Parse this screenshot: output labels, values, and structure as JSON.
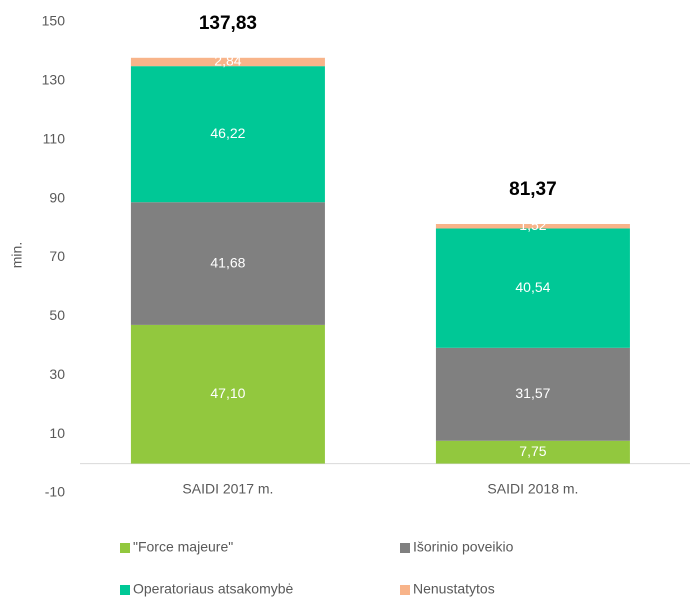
{
  "chart_data": {
    "type": "stacked_bar",
    "y_label": "min.",
    "categories": [
      "SAIDI 2017 m.",
      "SAIDI 2018 m."
    ],
    "series": [
      {
        "name": "\"Force majeure\"",
        "color": "#92c83e",
        "values": [
          47.1,
          7.75
        ],
        "value_labels": [
          "47,10",
          "7,75"
        ]
      },
      {
        "name": "Išorinio poveikio",
        "color": "#808080",
        "values": [
          41.68,
          31.57
        ],
        "value_labels": [
          "41,68",
          "31,57"
        ]
      },
      {
        "name": "Operatoriaus atsakomybė",
        "color": "#00c896",
        "values": [
          46.22,
          40.54
        ],
        "value_labels": [
          "46,22",
          "40,54"
        ]
      },
      {
        "name": "Nenustatytos",
        "color": "#f8b48a",
        "values": [
          2.84,
          1.52
        ],
        "value_labels": [
          "2,84",
          "1,52"
        ]
      }
    ],
    "totals": [
      137.83,
      81.37
    ],
    "total_labels": [
      "137,83",
      "81,37"
    ],
    "ylim": [
      -10,
      150
    ],
    "yticks": [
      -10,
      10,
      30,
      50,
      70,
      90,
      110,
      130,
      150
    ],
    "grid": false,
    "legend": "bottom"
  }
}
